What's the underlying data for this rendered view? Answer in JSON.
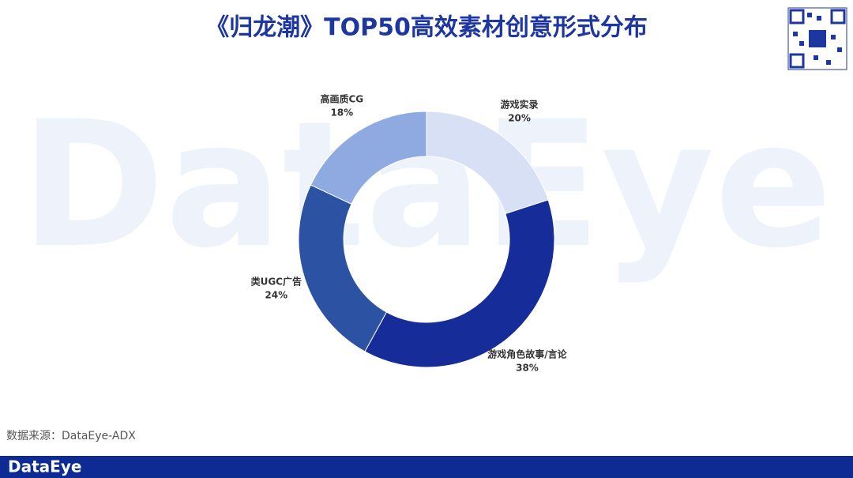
{
  "chart_data": {
    "type": "pie",
    "title": "《归龙潮》TOP50高效素材创意形式分布",
    "categories": [
      "游戏实录",
      "游戏角色故事/言论",
      "类UGC广告",
      "高画质CG"
    ],
    "values": [
      20,
      38,
      24,
      18
    ],
    "value_labels": [
      "20%",
      "38%",
      "24%",
      "18%"
    ],
    "colors": [
      "#d7e0f4",
      "#162c98",
      "#2c52a3",
      "#8eaae0"
    ],
    "source": "数据来源：DataEye-ADX"
  },
  "watermark": "DataEye",
  "footer": {
    "brand": "DataEye"
  }
}
